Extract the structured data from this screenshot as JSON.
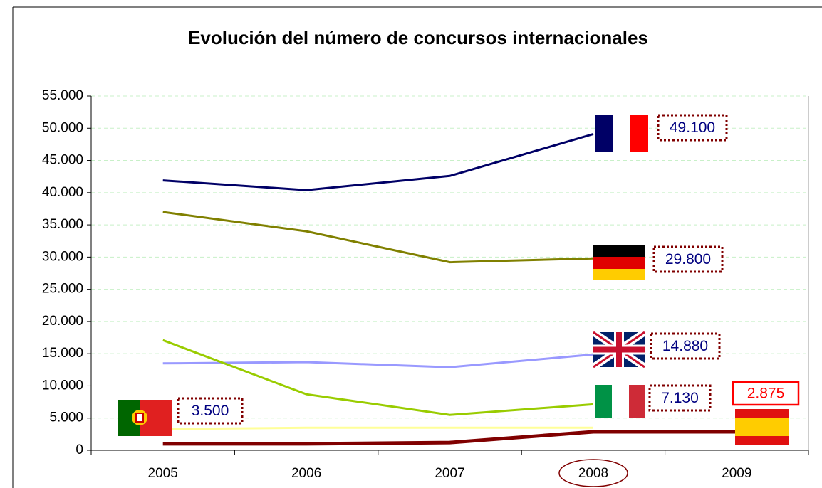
{
  "chart_data": {
    "type": "line",
    "title": "Evolución del número de concursos internacionales",
    "categories": [
      "2005",
      "2006",
      "2007",
      "2008",
      "2009"
    ],
    "ylim": [
      0,
      55000
    ],
    "yticks": [
      0,
      {
        "value": 5000,
        "label": "5.000"
      },
      {
        "value": 10000,
        "label": "10.000"
      },
      {
        "value": 15000,
        "label": "15.000"
      },
      {
        "value": 20000,
        "label": "20.000"
      },
      {
        "value": 25000,
        "label": "25.000"
      },
      {
        "value": 30000,
        "label": "30.000"
      },
      {
        "value": 35000,
        "label": "35.000"
      },
      {
        "value": 40000,
        "label": "40.000"
      },
      {
        "value": 45000,
        "label": "45.000"
      },
      {
        "value": 50000,
        "label": "50.000"
      },
      {
        "value": 55000,
        "label": "55.000"
      }
    ],
    "grid": true,
    "series": [
      {
        "color": "#000066",
        "values": [
          41900,
          40400,
          42600,
          49100,
          null
        ],
        "value_labels": [
          null,
          null,
          null,
          "49.100",
          null
        ]
      },
      {
        "color": "#808000",
        "values": [
          37000,
          34000,
          29200,
          29800,
          null
        ],
        "value_labels": [
          null,
          null,
          null,
          "29.800",
          null
        ]
      },
      {
        "color": "#9999ff",
        "values": [
          13500,
          13700,
          12900,
          14880,
          null
        ],
        "value_labels": [
          null,
          null,
          null,
          "14.880",
          null
        ]
      },
      {
        "color": "#99cc00",
        "values": [
          17100,
          8700,
          5500,
          7130,
          null
        ],
        "value_labels": [
          null,
          null,
          null,
          "7.130",
          null
        ]
      },
      {
        "color": "#ffff99",
        "values": [
          3300,
          3500,
          3500,
          3500,
          null
        ],
        "value_labels": [
          null,
          null,
          null,
          "3.500",
          null
        ]
      },
      {
        "color": "#800000",
        "values": [
          1000,
          1000,
          1200,
          2875,
          2875
        ],
        "value_labels": [
          null,
          null,
          null,
          null,
          "2.875"
        ]
      }
    ]
  }
}
